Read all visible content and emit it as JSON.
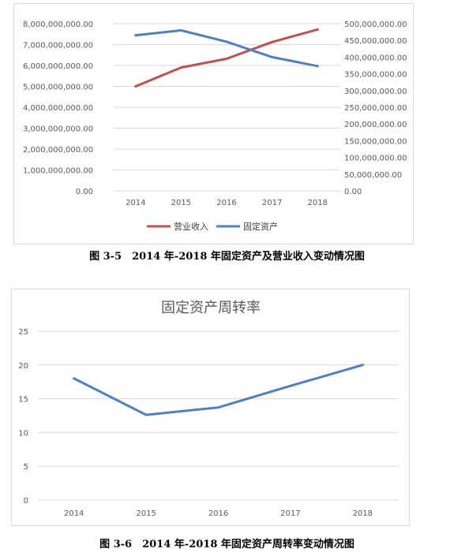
{
  "chart_data": [
    {
      "type": "line",
      "title": "",
      "caption": "图 3-5　2014 年-2018 年固定资产及营业收入变动情况图",
      "categories": [
        "2014",
        "2015",
        "2016",
        "2017",
        "2018"
      ],
      "y_left": {
        "ylim": [
          0,
          8000000000
        ],
        "ticks": [
          0,
          1000000000,
          2000000000,
          3000000000,
          4000000000,
          5000000000,
          6000000000,
          7000000000,
          8000000000
        ],
        "tick_labels": [
          "0.00",
          "1,000,000,000.00",
          "2,000,000,000.00",
          "3,000,000,000.00",
          "4,000,000,000.00",
          "5,000,000,000.00",
          "6,000,000,000.00",
          "7,000,000,000.00",
          "8,000,000,000.00"
        ]
      },
      "y_right": {
        "ylim": [
          0,
          500000000
        ],
        "ticks": [
          0,
          50000000,
          100000000,
          150000000,
          200000000,
          250000000,
          300000000,
          350000000,
          400000000,
          450000000,
          500000000
        ],
        "tick_labels": [
          "0.00",
          "50,000,000.00",
          "100,000,000.00",
          "150,000,000.00",
          "200,000,000.00",
          "250,000,000.00",
          "300,000,000.00",
          "350,000,000.00",
          "400,000,000.00",
          "450,000,000.00",
          "500,000,000.00"
        ]
      },
      "series": [
        {
          "name": "营业收入",
          "axis": "left",
          "color": "#c0504d",
          "values": [
            5000000000,
            5900000000,
            6320000000,
            7120000000,
            7720000000
          ]
        },
        {
          "name": "固定资产",
          "axis": "right",
          "color": "#4f81bd",
          "values": [
            465000000,
            480000000,
            446000000,
            400000000,
            373000000
          ]
        }
      ],
      "legend": "bottom",
      "grid": true
    },
    {
      "type": "line",
      "title": "固定资产周转率",
      "caption": "图 3-6　2014 年-2018 年固定资产周转率变动情况图",
      "categories": [
        "2014",
        "2015",
        "2016",
        "2017",
        "2018"
      ],
      "ylim": [
        0,
        25
      ],
      "ticks": [
        0,
        5,
        10,
        15,
        20,
        25
      ],
      "tick_labels": [
        "0",
        "5",
        "10",
        "15",
        "20",
        "25"
      ],
      "series": [
        {
          "color": "#4f81bd",
          "values": [
            18,
            12.6,
            13.7,
            16.9,
            20
          ]
        }
      ],
      "legend": "none",
      "grid": true
    }
  ]
}
